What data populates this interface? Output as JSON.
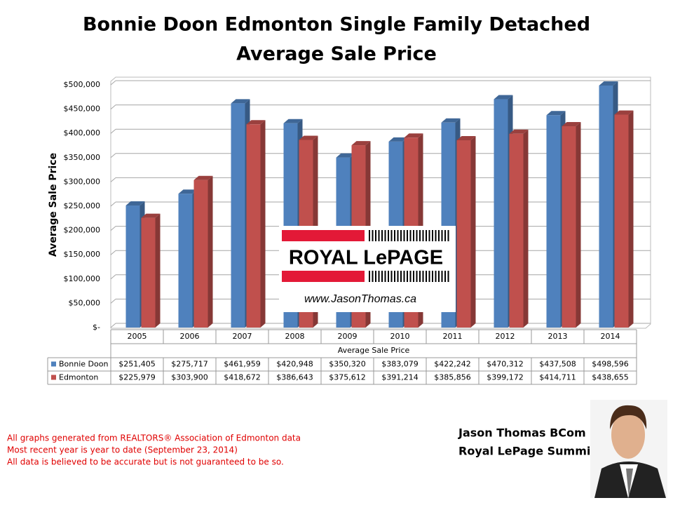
{
  "chart_data": {
    "type": "bar",
    "title": "Bonnie Doon Edmonton Single Family Detached",
    "subtitle": "Average Sale Price",
    "y_label": "Average Sale Price",
    "x_label": "Average Sale Price",
    "categories": [
      "2005",
      "2006",
      "2007",
      "2008",
      "2009",
      "2010",
      "2011",
      "2012",
      "2013",
      "2014"
    ],
    "series": [
      {
        "name": "Bonnie Doon",
        "color": "#4f81bd",
        "values": [
          251405,
          275717,
          461959,
          420948,
          350320,
          383079,
          422242,
          470312,
          437508,
          498596
        ],
        "value_labels": [
          "$251,405",
          "$275,717",
          "$461,959",
          "$420,948",
          "$350,320",
          "$383,079",
          "$422,242",
          "$470,312",
          "$437,508",
          "$498,596"
        ]
      },
      {
        "name": "Edmonton",
        "color": "#c0504d",
        "values": [
          225979,
          303900,
          418672,
          386643,
          375612,
          391214,
          385856,
          399172,
          414711,
          438655
        ],
        "value_labels": [
          "$225,979",
          "$303,900",
          "$418,672",
          "$386,643",
          "$375,612",
          "$391,214",
          "$385,856",
          "$399,172",
          "$414,711",
          "$438,655"
        ]
      }
    ],
    "ylim": [
      0,
      500000
    ],
    "yticks": [
      {
        "value": 0,
        "label": "$-"
      },
      {
        "value": 50000,
        "label": "$50,000"
      },
      {
        "value": 100000,
        "label": "$100,000"
      },
      {
        "value": 150000,
        "label": "$150,000"
      },
      {
        "value": 200000,
        "label": "$200,000"
      },
      {
        "value": 250000,
        "label": "$250,000"
      },
      {
        "value": 300000,
        "label": "$300,000"
      },
      {
        "value": 350000,
        "label": "$350,000"
      },
      {
        "value": 400000,
        "label": "$400,000"
      },
      {
        "value": 450000,
        "label": "$450,000"
      },
      {
        "value": 500000,
        "label": "$500,000"
      }
    ],
    "grid": true
  },
  "logo": {
    "brand": "ROYAL LePAGE",
    "url": "www.JasonThomas.ca"
  },
  "notes": [
    "All graphs generated from REALTORS® Association of Edmonton data",
    "Most recent year is year to date (September 23, 2014)",
    "All data is believed to be accurate but is not guaranteed to be so."
  ],
  "agent": {
    "name": "Jason Thomas BCom",
    "company": "Royal LePage Summit"
  }
}
